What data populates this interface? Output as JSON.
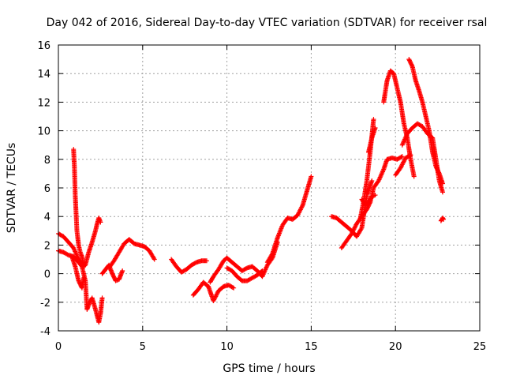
{
  "chart_data": {
    "type": "scatter",
    "title": "Day 042 of 2016, Sidereal Day-to-day VTEC variation (SDTVAR) for receiver rsal",
    "xlabel": "GPS time / hours",
    "ylabel": "SDTVAR / TECUs",
    "xlim": [
      0,
      25
    ],
    "ylim": [
      -4,
      16
    ],
    "xticks": [
      "0",
      "5",
      "10",
      "15",
      "20",
      "25"
    ],
    "yticks": [
      "-4",
      "-2",
      "0",
      "2",
      "4",
      "6",
      "8",
      "10",
      "12",
      "14",
      "16"
    ],
    "grid": true,
    "marker": "+",
    "color": "#ff0000",
    "segments": [
      {
        "x": [
          0.0,
          0.3,
          0.6,
          0.9,
          1.2,
          1.4
        ],
        "y": [
          2.8,
          2.6,
          2.2,
          1.8,
          1.0,
          0.7
        ]
      },
      {
        "x": [
          0.0,
          0.3,
          0.6,
          0.9,
          1.2,
          1.4,
          1.6,
          1.7,
          1.85,
          2.0,
          2.2,
          2.4,
          2.5,
          2.6
        ],
        "y": [
          1.6,
          1.5,
          1.3,
          1.2,
          0.8,
          0.5,
          -0.5,
          -2.5,
          -2.0,
          -1.7,
          -2.5,
          -3.4,
          -2.8,
          -1.7
        ]
      },
      {
        "x": [
          0.9,
          0.95,
          1.0,
          1.1,
          1.2,
          1.3,
          1.4,
          1.5,
          1.6,
          1.8,
          2.0,
          2.2,
          2.3,
          2.4,
          2.5
        ],
        "y": [
          8.7,
          7.5,
          5.5,
          3.0,
          2.0,
          1.5,
          1.2,
          0.5,
          0.6,
          1.5,
          2.2,
          3.0,
          3.5,
          3.9,
          3.6
        ]
      },
      {
        "x": [
          0.8,
          1.0,
          1.2,
          1.4,
          1.5
        ],
        "y": [
          1.2,
          0.5,
          -0.5,
          -1.0,
          -0.3
        ]
      },
      {
        "x": [
          2.6,
          2.8,
          3.0,
          3.2,
          3.4,
          3.6,
          3.8
        ],
        "y": [
          0.0,
          0.3,
          0.6,
          0.0,
          -0.5,
          -0.4,
          0.2
        ]
      },
      {
        "x": [
          3.0,
          3.3,
          3.6,
          3.9,
          4.2,
          4.5,
          4.8,
          5.1,
          5.4,
          5.7
        ],
        "y": [
          0.4,
          0.9,
          1.5,
          2.1,
          2.4,
          2.1,
          2.0,
          1.9,
          1.6,
          1.0
        ]
      },
      {
        "x": [
          6.7,
          7.0,
          7.3,
          7.6,
          7.9,
          8.2,
          8.5,
          8.8
        ],
        "y": [
          1.0,
          0.5,
          0.1,
          0.3,
          0.6,
          0.8,
          0.9,
          0.9
        ]
      },
      {
        "x": [
          8.0,
          8.3,
          8.6,
          8.9,
          9.2,
          9.5,
          9.8,
          10.1,
          10.4
        ],
        "y": [
          -1.5,
          -1.1,
          -0.6,
          -0.9,
          -1.9,
          -1.2,
          -0.9,
          -0.8,
          -1.0
        ]
      },
      {
        "x": [
          9.0,
          9.2,
          9.5,
          9.8,
          10.0,
          10.3,
          10.6,
          10.9,
          11.2,
          11.5,
          11.8,
          12.1,
          12.4,
          12.7,
          13.0
        ],
        "y": [
          -0.6,
          -0.2,
          0.3,
          0.9,
          1.1,
          0.8,
          0.5,
          0.2,
          0.4,
          0.5,
          0.2,
          -0.2,
          0.6,
          1.1,
          2.2
        ]
      },
      {
        "x": [
          10.0,
          10.3,
          10.6,
          10.9,
          11.2,
          11.5,
          11.8,
          12.1
        ],
        "y": [
          0.4,
          0.2,
          -0.2,
          -0.5,
          -0.5,
          -0.3,
          -0.1,
          0.2
        ]
      },
      {
        "x": [
          12.4,
          12.7,
          13.0,
          13.3,
          13.6,
          13.9,
          14.2,
          14.5,
          14.8,
          15.0
        ],
        "y": [
          0.8,
          1.4,
          2.5,
          3.4,
          3.9,
          3.8,
          4.1,
          4.8,
          6.0,
          6.8
        ]
      },
      {
        "x": [
          16.2,
          16.5,
          16.8,
          17.1,
          17.4,
          17.7,
          18.0,
          18.3,
          18.6
        ],
        "y": [
          4.0,
          3.9,
          3.6,
          3.3,
          3.0,
          2.6,
          3.2,
          5.5,
          6.5
        ]
      },
      {
        "x": [
          16.8,
          17.1,
          17.4,
          17.7,
          18.0,
          18.3,
          18.5,
          18.7,
          19.0,
          19.3,
          19.5,
          19.8,
          20.1,
          20.4
        ],
        "y": [
          1.8,
          2.3,
          2.8,
          3.5,
          4.0,
          4.5,
          5.0,
          6.0,
          6.5,
          7.3,
          8.0,
          8.1,
          8.0,
          8.2
        ]
      },
      {
        "x": [
          17.9,
          18.1,
          18.3,
          18.5,
          18.7
        ],
        "y": [
          3.8,
          5.0,
          6.5,
          8.5,
          10.8
        ]
      },
      {
        "x": [
          19.3,
          19.5,
          19.7,
          19.9,
          20.1,
          20.3,
          20.5,
          20.7,
          20.9,
          21.1
        ],
        "y": [
          12.0,
          13.5,
          14.2,
          14.0,
          13.0,
          12.0,
          10.5,
          9.5,
          8.0,
          6.8
        ]
      },
      {
        "x": [
          20.8,
          21.0,
          21.2,
          21.4,
          21.6,
          21.8,
          22.0,
          22.2,
          22.4,
          22.6,
          22.8
        ],
        "y": [
          15.0,
          14.5,
          13.5,
          12.8,
          12.0,
          11.0,
          10.0,
          8.5,
          7.5,
          7.0,
          6.3
        ]
      },
      {
        "x": [
          20.4,
          20.7,
          21.0,
          21.3,
          21.6,
          21.9,
          22.2,
          22.4,
          22.6,
          22.8
        ],
        "y": [
          9.0,
          9.8,
          10.2,
          10.5,
          10.3,
          9.8,
          9.5,
          8.0,
          6.5,
          5.7
        ]
      },
      {
        "x": [
          18.4,
          18.6,
          18.8
        ],
        "y": [
          8.5,
          9.5,
          10.2
        ]
      },
      {
        "x": [
          20.0,
          20.3,
          20.6,
          20.9
        ],
        "y": [
          6.9,
          7.4,
          8.1,
          8.3
        ]
      },
      {
        "x": [
          22.7,
          22.8,
          22.85
        ],
        "y": [
          3.7,
          3.9,
          3.8
        ]
      },
      {
        "x": [
          18.0,
          18.2,
          18.4,
          18.6,
          18.8
        ],
        "y": [
          5.2,
          4.8,
          5.0,
          5.4,
          5.5
        ]
      }
    ]
  }
}
